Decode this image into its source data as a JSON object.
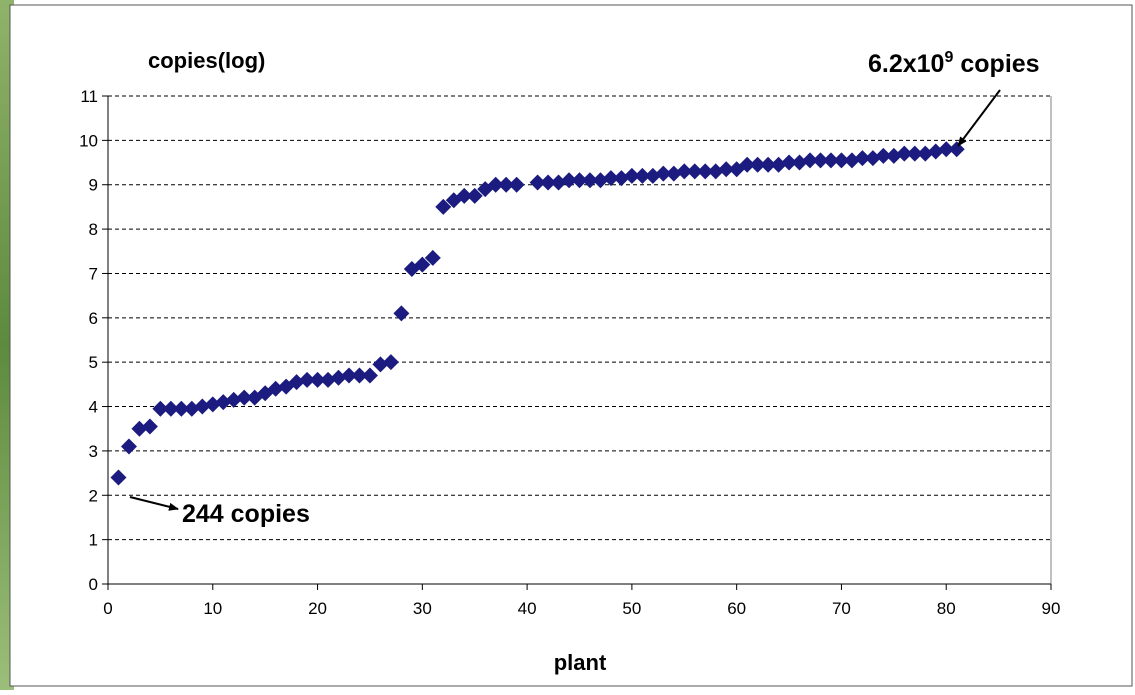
{
  "chart_data": {
    "type": "scatter",
    "y_title": "copies(log)",
    "x_title": "plant",
    "x": [
      1,
      2,
      3,
      4,
      5,
      6,
      7,
      8,
      9,
      10,
      11,
      12,
      13,
      14,
      15,
      16,
      17,
      18,
      19,
      20,
      21,
      22,
      23,
      24,
      25,
      26,
      27,
      28,
      29,
      30,
      31,
      32,
      33,
      34,
      35,
      36,
      37,
      38,
      39,
      41,
      42,
      43,
      44,
      45,
      46,
      47,
      48,
      49,
      50,
      51,
      52,
      53,
      54,
      55,
      56,
      57,
      58,
      59,
      60,
      61,
      62,
      63,
      64,
      65,
      66,
      67,
      68,
      69,
      70,
      71,
      72,
      73,
      74,
      75,
      76,
      77,
      78,
      79,
      80,
      81
    ],
    "values": [
      2.4,
      3.1,
      3.5,
      3.55,
      3.95,
      3.95,
      3.95,
      3.95,
      4.0,
      4.05,
      4.1,
      4.15,
      4.2,
      4.2,
      4.3,
      4.4,
      4.45,
      4.55,
      4.6,
      4.6,
      4.6,
      4.65,
      4.7,
      4.7,
      4.7,
      4.95,
      5.0,
      6.1,
      7.1,
      7.2,
      7.35,
      8.5,
      8.65,
      8.75,
      8.75,
      8.9,
      9.0,
      9.0,
      9.0,
      9.05,
      9.05,
      9.05,
      9.1,
      9.1,
      9.1,
      9.1,
      9.15,
      9.15,
      9.2,
      9.2,
      9.2,
      9.25,
      9.25,
      9.3,
      9.3,
      9.3,
      9.3,
      9.35,
      9.35,
      9.45,
      9.45,
      9.45,
      9.45,
      9.5,
      9.5,
      9.55,
      9.55,
      9.55,
      9.55,
      9.55,
      9.6,
      9.6,
      9.65,
      9.65,
      9.7,
      9.7,
      9.7,
      9.75,
      9.8,
      9.8
    ],
    "color": "#1c1c80",
    "xlim": [
      0,
      90
    ],
    "ylim": [
      0,
      11
    ],
    "xticks": [
      0,
      10,
      20,
      30,
      40,
      50,
      60,
      70,
      80,
      90
    ],
    "yticks": [
      0,
      1,
      2,
      3,
      4,
      5,
      6,
      7,
      8,
      9,
      10,
      11
    ],
    "grid": true,
    "annotations": [
      {
        "text": "244 copies"
      },
      {
        "base": "6.2x10",
        "exponent": "9",
        "unit": "copies"
      }
    ]
  }
}
